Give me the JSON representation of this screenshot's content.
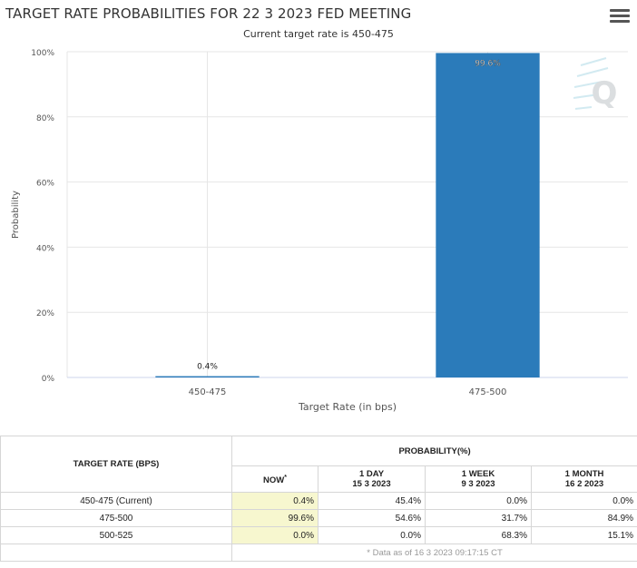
{
  "chart": {
    "title": "TARGET RATE PROBABILITIES FOR 22 3 2023 FED MEETING",
    "subtitle": "Current target rate is 450-475",
    "menu_icon": "hamburger-menu-icon",
    "bar_color": "#2b7bba"
  },
  "chart_data": {
    "type": "bar",
    "categories": [
      "450-475",
      "475-500"
    ],
    "values": [
      0.4,
      99.6
    ],
    "data_labels": [
      "0.4%",
      "99.6%"
    ],
    "title": "TARGET RATE PROBABILITIES FOR 22 3 2023 FED MEETING",
    "subtitle": "Current target rate is 450-475",
    "xlabel": "Target Rate (in bps)",
    "ylabel": "Probability",
    "ylim": [
      0,
      100
    ],
    "yticks": [
      "0%",
      "20%",
      "40%",
      "60%",
      "80%",
      "100%"
    ],
    "grid": true
  },
  "table": {
    "rate_header": "TARGET RATE (BPS)",
    "prob_header": "PROBABILITY(%)",
    "now_label": "NOW",
    "now_marker": "*",
    "columns": [
      {
        "label": "1 DAY",
        "date": "15 3 2023"
      },
      {
        "label": "1 WEEK",
        "date": "9 3 2023"
      },
      {
        "label": "1 MONTH",
        "date": "16 2 2023"
      }
    ],
    "rows": [
      {
        "rate": "450-475 (Current)",
        "now": "0.4%",
        "day": "45.4%",
        "week": "0.0%",
        "month": "0.0%"
      },
      {
        "rate": "475-500",
        "now": "99.6%",
        "day": "54.6%",
        "week": "31.7%",
        "month": "84.9%"
      },
      {
        "rate": "500-525",
        "now": "0.0%",
        "day": "0.0%",
        "week": "68.3%",
        "month": "15.1%"
      }
    ],
    "footnote": "* Data as of 16 3 2023 09:17:15 CT"
  }
}
